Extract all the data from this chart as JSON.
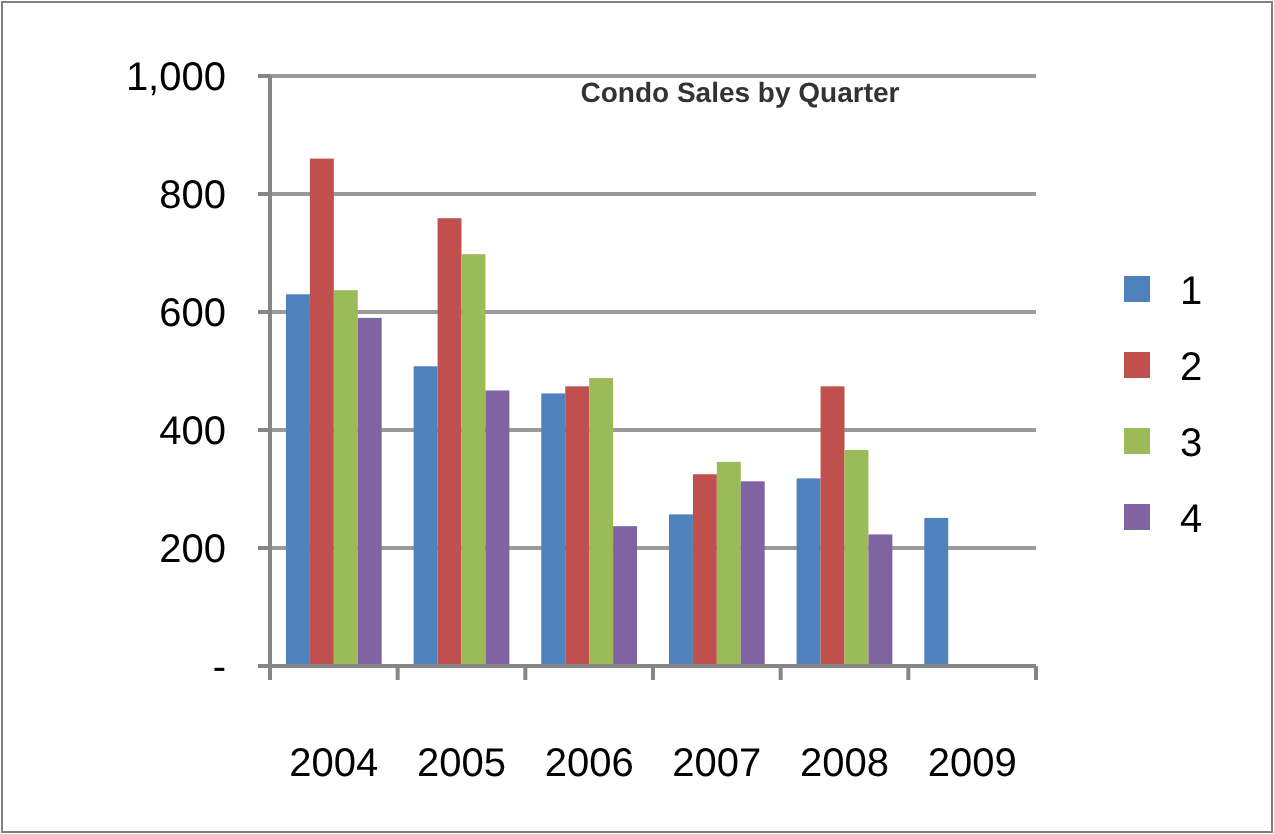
{
  "chart_data": {
    "type": "bar",
    "title": "Condo Sales by Quarter",
    "categories": [
      "2004",
      "2005",
      "2006",
      "2007",
      "2008",
      "2009"
    ],
    "series": [
      {
        "name": "1",
        "color": "#4f81bd",
        "values": [
          630,
          508,
          462,
          257,
          318,
          251
        ]
      },
      {
        "name": "2",
        "color": "#c0504d",
        "values": [
          860,
          759,
          474,
          325,
          474,
          null
        ]
      },
      {
        "name": "3",
        "color": "#9bbb59",
        "values": [
          637,
          698,
          488,
          346,
          366,
          null
        ]
      },
      {
        "name": "4",
        "color": "#8064a2",
        "values": [
          590,
          467,
          237,
          313,
          223,
          null
        ]
      }
    ],
    "ylim": [
      0,
      1000
    ],
    "yticks": [
      {
        "value": 0,
        "label": "-"
      },
      {
        "value": 200,
        "label": "200"
      },
      {
        "value": 400,
        "label": "400"
      },
      {
        "value": 600,
        "label": "600"
      },
      {
        "value": 800,
        "label": "800"
      },
      {
        "value": 1000,
        "label": "1,000"
      }
    ],
    "grid": "y",
    "legend": "right"
  }
}
